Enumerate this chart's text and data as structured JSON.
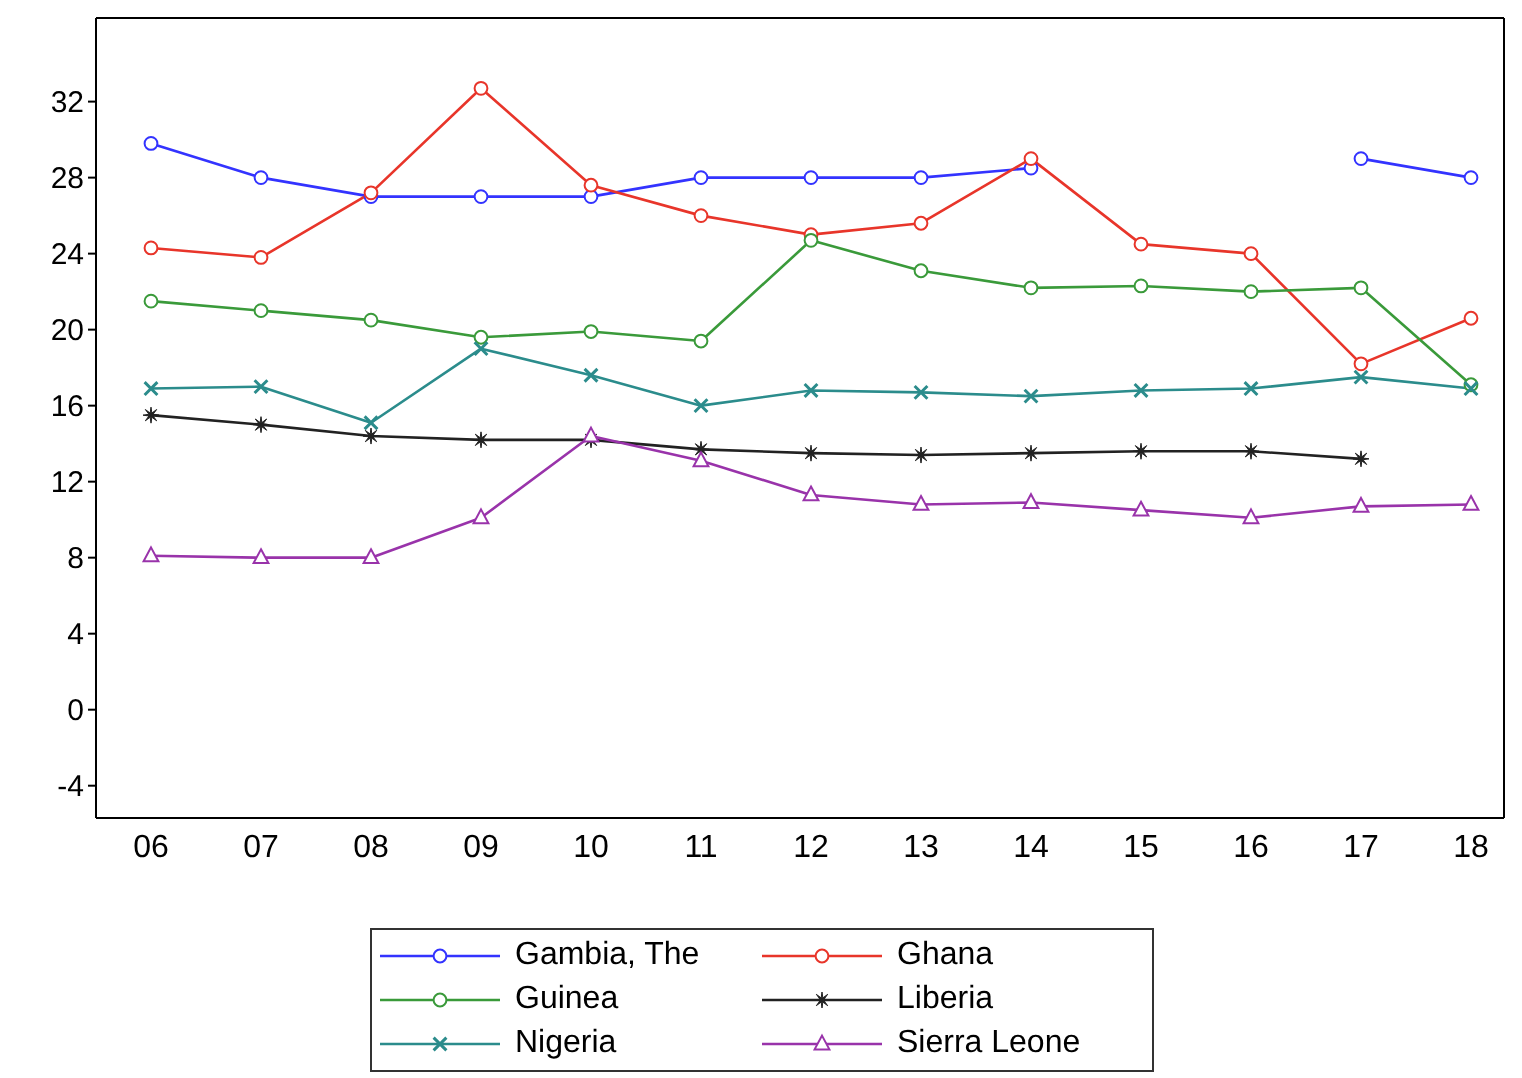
{
  "chart_data": {
    "type": "line",
    "categories": [
      "06",
      "07",
      "08",
      "09",
      "10",
      "11",
      "12",
      "13",
      "14",
      "15",
      "16",
      "17",
      "18"
    ],
    "ylim": [
      -5.7,
      36.4
    ],
    "yticks": [
      -4,
      0,
      4,
      8,
      12,
      16,
      20,
      24,
      28,
      32
    ],
    "grid": false,
    "legend": "bottom",
    "series": [
      {
        "name": "Gambia, The",
        "color": "#3333ff",
        "marker": "circle",
        "values": [
          29.8,
          28.0,
          27.0,
          27.0,
          27.0,
          28.0,
          28.0,
          28.0,
          28.5,
          null,
          null,
          29.0,
          28.0
        ]
      },
      {
        "name": "Ghana",
        "color": "#e8352a",
        "marker": "circle",
        "values": [
          24.3,
          23.8,
          27.2,
          32.7,
          27.6,
          26.0,
          25.0,
          25.6,
          29.0,
          24.5,
          24.0,
          18.2,
          20.6
        ]
      },
      {
        "name": "Guinea",
        "color": "#3a9a3a",
        "marker": "circle",
        "values": [
          21.5,
          21.0,
          20.5,
          19.6,
          19.9,
          19.4,
          24.7,
          23.1,
          22.2,
          22.3,
          22.0,
          22.2,
          17.1
        ]
      },
      {
        "name": "Liberia",
        "color": "#222222",
        "marker": "star",
        "values": [
          15.5,
          15.0,
          14.4,
          14.2,
          14.2,
          13.7,
          13.5,
          13.4,
          13.5,
          13.6,
          13.6,
          13.2,
          null
        ]
      },
      {
        "name": "Nigeria",
        "color": "#2b8c8c",
        "marker": "cross",
        "values": [
          16.9,
          17.0,
          15.1,
          19.0,
          17.6,
          16.0,
          16.8,
          16.7,
          16.5,
          16.8,
          16.9,
          17.5,
          16.9
        ]
      },
      {
        "name": "Sierra Leone",
        "color": "#9933aa",
        "marker": "triangle",
        "values": [
          8.1,
          8.0,
          8.0,
          10.1,
          14.4,
          13.1,
          11.3,
          10.8,
          10.9,
          10.5,
          10.1,
          10.7,
          10.8
        ]
      }
    ]
  }
}
